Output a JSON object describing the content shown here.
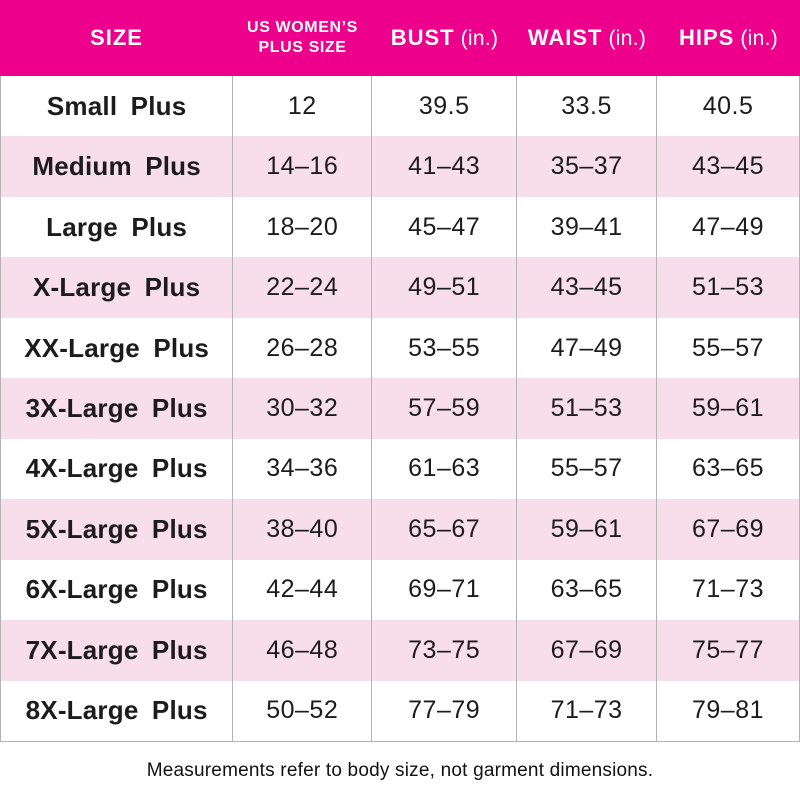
{
  "colors": {
    "header_background": "#EC008C",
    "header_text": "#FFFFFF",
    "alt_row_background": "#F8DDEB",
    "grid_line": "#B3B3B3",
    "body_text": "#1C1C1C"
  },
  "table": {
    "headers": {
      "size": {
        "label": "SIZE"
      },
      "plus_size": {
        "line1": "US WOMEN’S",
        "line2": "PLUS SIZE"
      },
      "bust": {
        "label": "BUST",
        "unit": "(in.)"
      },
      "waist": {
        "label": "WAIST",
        "unit": "(in.)"
      },
      "hips": {
        "label": "HIPS",
        "unit": "(in.)"
      }
    },
    "rows": [
      {
        "size": "Small Plus",
        "plus_size": "12",
        "bust": "39.5",
        "waist": "33.5",
        "hips": "40.5"
      },
      {
        "size": "Medium Plus",
        "plus_size": "14–16",
        "bust": "41–43",
        "waist": "35–37",
        "hips": "43–45"
      },
      {
        "size": "Large Plus",
        "plus_size": "18–20",
        "bust": "45–47",
        "waist": "39–41",
        "hips": "47–49"
      },
      {
        "size": "X-Large Plus",
        "plus_size": "22–24",
        "bust": "49–51",
        "waist": "43–45",
        "hips": "51–53"
      },
      {
        "size": "XX-Large Plus",
        "plus_size": "26–28",
        "bust": "53–55",
        "waist": "47–49",
        "hips": "55–57"
      },
      {
        "size": "3X-Large Plus",
        "plus_size": "30–32",
        "bust": "57–59",
        "waist": "51–53",
        "hips": "59–61"
      },
      {
        "size": "4X-Large Plus",
        "plus_size": "34–36",
        "bust": "61–63",
        "waist": "55–57",
        "hips": "63–65"
      },
      {
        "size": "5X-Large Plus",
        "plus_size": "38–40",
        "bust": "65–67",
        "waist": "59–61",
        "hips": "67–69"
      },
      {
        "size": "6X-Large Plus",
        "plus_size": "42–44",
        "bust": "69–71",
        "waist": "63–65",
        "hips": "71–73"
      },
      {
        "size": "7X-Large Plus",
        "plus_size": "46–48",
        "bust": "73–75",
        "waist": "67–69",
        "hips": "75–77"
      },
      {
        "size": "8X-Large Plus",
        "plus_size": "50–52",
        "bust": "77–79",
        "waist": "71–73",
        "hips": "79–81"
      }
    ]
  },
  "footer": {
    "note": "Measurements refer to body size, not garment dimensions."
  },
  "chart_data": {
    "type": "table",
    "title": "US Women's Plus Size Chart",
    "columns": [
      "SIZE",
      "US WOMEN’S PLUS SIZE",
      "BUST (in.)",
      "WAIST (in.)",
      "HIPS (in.)"
    ],
    "rows": [
      [
        "Small Plus",
        "12",
        "39.5",
        "33.5",
        "40.5"
      ],
      [
        "Medium Plus",
        "14–16",
        "41–43",
        "35–37",
        "43–45"
      ],
      [
        "Large Plus",
        "18–20",
        "45–47",
        "39–41",
        "47–49"
      ],
      [
        "X-Large Plus",
        "22–24",
        "49–51",
        "43–45",
        "51–53"
      ],
      [
        "XX-Large Plus",
        "26–28",
        "53–55",
        "47–49",
        "55–57"
      ],
      [
        "3X-Large Plus",
        "30–32",
        "57–59",
        "51–53",
        "59–61"
      ],
      [
        "4X-Large Plus",
        "34–36",
        "61–63",
        "55–57",
        "63–65"
      ],
      [
        "5X-Large Plus",
        "38–40",
        "65–67",
        "59–61",
        "67–69"
      ],
      [
        "6X-Large Plus",
        "42–44",
        "69–71",
        "63–65",
        "71–73"
      ],
      [
        "7X-Large Plus",
        "46–48",
        "73–75",
        "67–69",
        "75–77"
      ],
      [
        "8X-Large Plus",
        "50–52",
        "77–79",
        "71–73",
        "79–81"
      ]
    ],
    "note": "Measurements refer to body size, not garment dimensions.",
    "layout": {
      "alternating_row_shading": true,
      "header_position": "top",
      "grid": "vertical-only"
    }
  }
}
